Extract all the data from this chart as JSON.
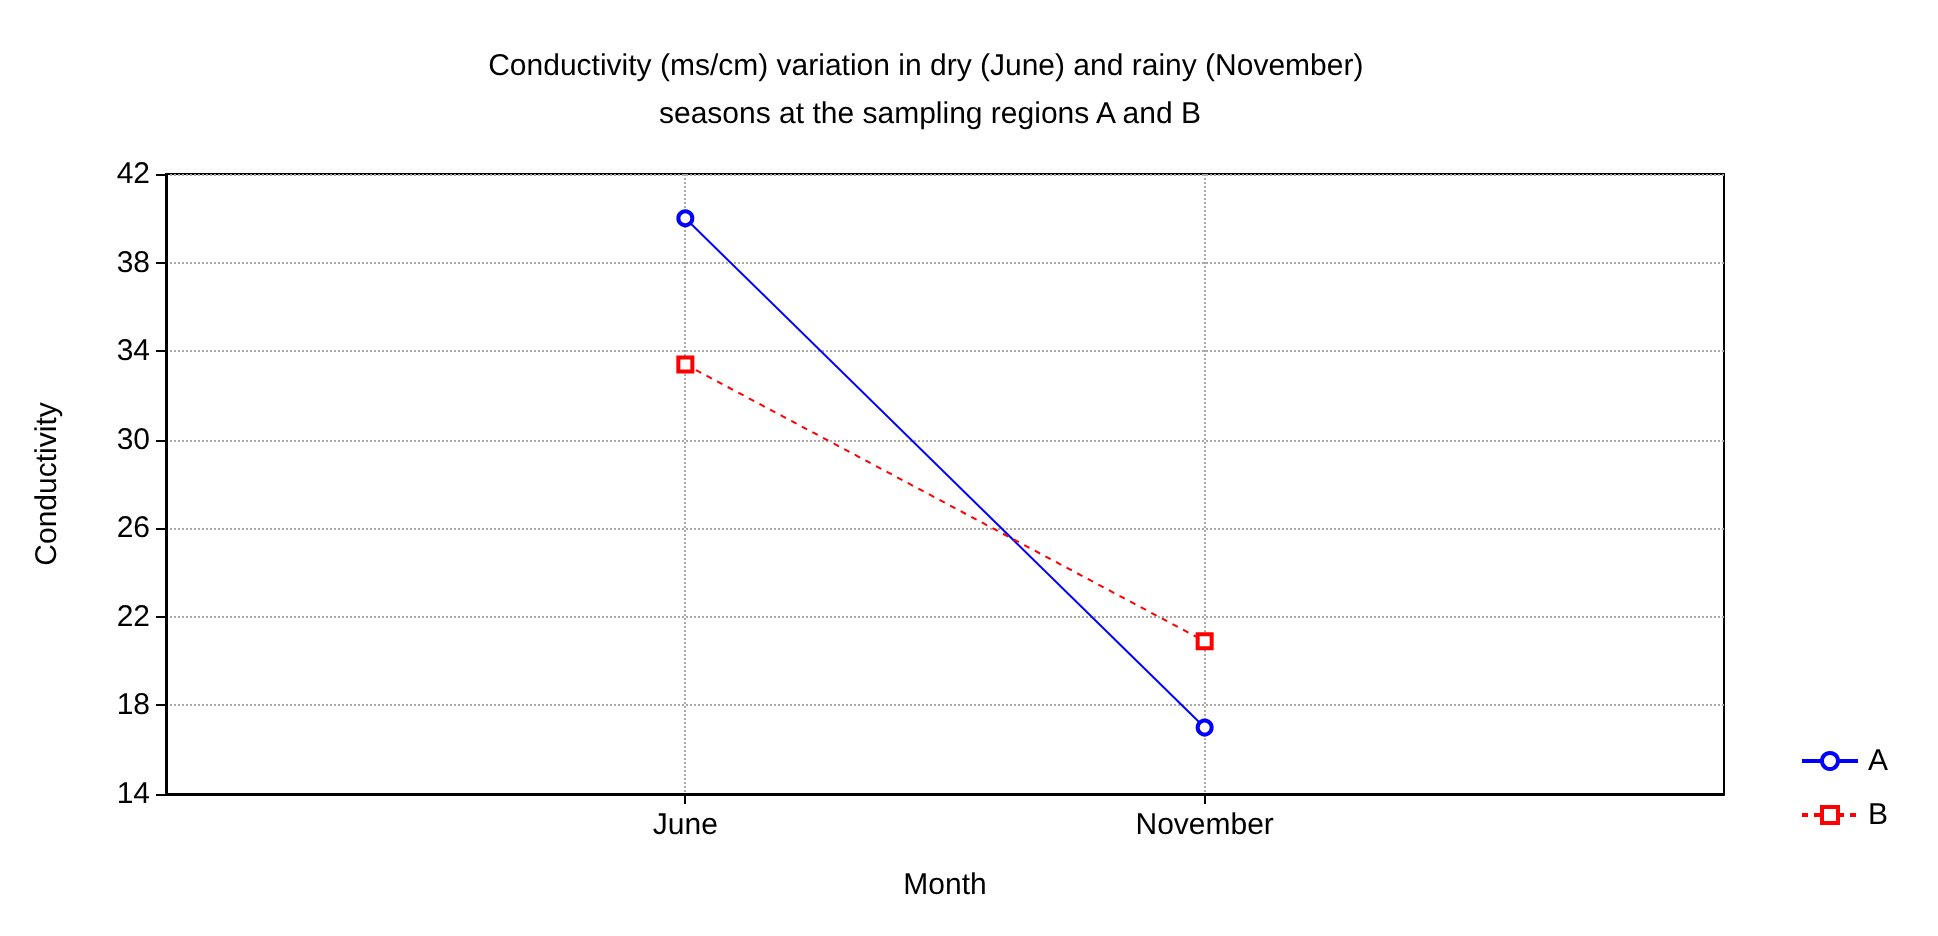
{
  "chart_data": {
    "type": "line",
    "title": "Conductivity (ms/cm) variation in dry (June) and rainy (November) seasons at the sampling regions A and B",
    "xlabel": "Month",
    "ylabel": "Conductivity",
    "categories": [
      "June",
      "November"
    ],
    "series": [
      {
        "name": "A",
        "color": "#0000ff",
        "values": [
          40,
          17
        ],
        "marker": "circle",
        "line_style": "solid"
      },
      {
        "name": "B",
        "color": "#ff0000",
        "values": [
          33.4,
          20.9
        ],
        "marker": "square",
        "line_style": "dashed"
      }
    ],
    "ylim": [
      14,
      42
    ],
    "yticks": [
      14,
      18,
      22,
      26,
      30,
      34,
      38,
      42
    ],
    "grid": true,
    "legend": "bottom right"
  }
}
